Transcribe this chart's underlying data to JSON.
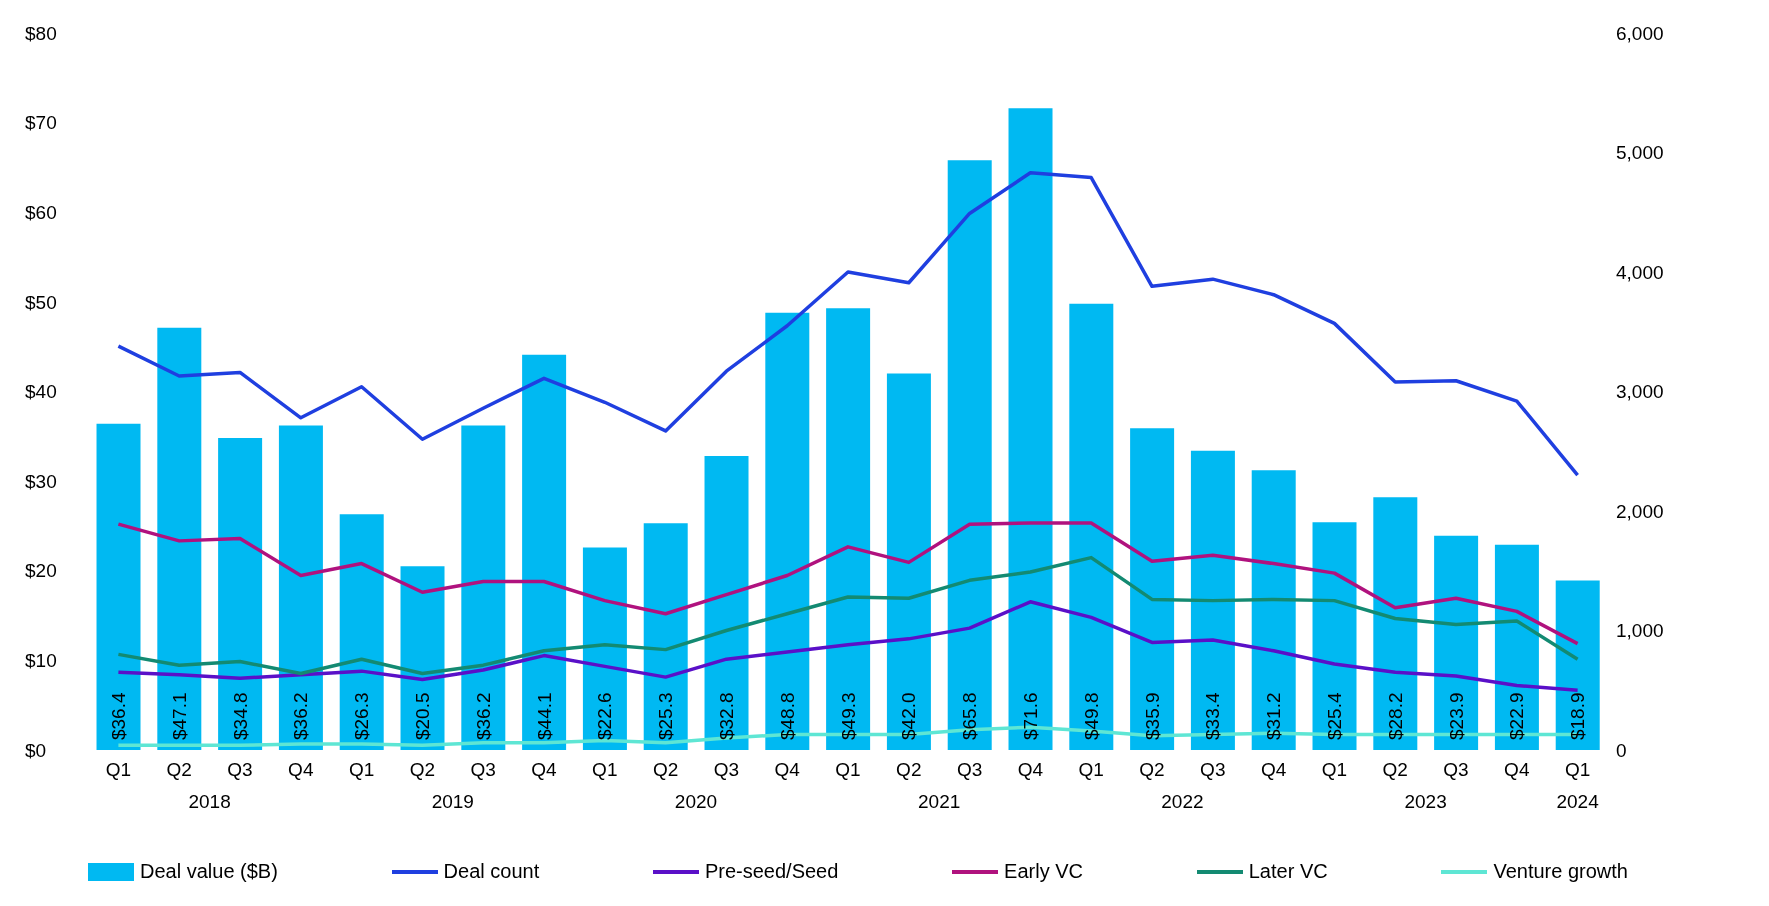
{
  "chart_data": {
    "type": "bar",
    "categories": [
      "Q1",
      "Q2",
      "Q3",
      "Q4",
      "Q1",
      "Q2",
      "Q3",
      "Q4",
      "Q1",
      "Q2",
      "Q3",
      "Q4",
      "Q1",
      "Q2",
      "Q3",
      "Q4",
      "Q1",
      "Q2",
      "Q3",
      "Q4",
      "Q1",
      "Q2",
      "Q3",
      "Q4",
      "Q1"
    ],
    "annotations": [
      "2018",
      "2019",
      "2020",
      "2021",
      "2022",
      "2023",
      "2024"
    ],
    "series": [
      {
        "name": "Deal value ($B)",
        "color": "#00b9f2",
        "values": [
          36.4,
          47.1,
          34.8,
          36.2,
          26.3,
          20.5,
          36.2,
          44.1,
          22.6,
          25.3,
          32.8,
          48.8,
          49.3,
          42.0,
          65.8,
          71.6,
          49.8,
          35.9,
          33.4,
          31.2,
          25.4,
          28.2,
          23.9,
          22.9,
          18.9
        ],
        "value_labels": [
          "$36.4",
          "$47.1",
          "$34.8",
          "$36.2",
          "$26.3",
          "$20.5",
          "$36.2",
          "$44.1",
          "$22.6",
          "$25.3",
          "$32.8",
          "$48.8",
          "$49.3",
          "$42.0",
          "$65.8",
          "$71.6",
          "$49.8",
          "$35.9",
          "$33.4",
          "$31.2",
          "$25.4",
          "$28.2",
          "$23.9",
          "$22.9",
          "$18.9"
        ]
      },
      {
        "name": "Deal count",
        "type": "line",
        "axis": "y2",
        "color": "#1f3fe0",
        "values": [
          3380,
          3130,
          3160,
          2780,
          3040,
          2600,
          2860,
          3110,
          2910,
          2670,
          3170,
          3550,
          4000,
          3910,
          4490,
          4830,
          4790,
          3880,
          3940,
          3810,
          3570,
          3080,
          3090,
          2920,
          2300
        ]
      },
      {
        "name": "Pre-seed/Seed",
        "type": "line",
        "axis": "y2",
        "color": "#5a10c8",
        "values": [
          650,
          630,
          600,
          630,
          660,
          590,
          670,
          790,
          700,
          610,
          760,
          820,
          880,
          930,
          1020,
          1240,
          1110,
          900,
          920,
          830,
          720,
          650,
          620,
          540,
          500
        ]
      },
      {
        "name": "Early VC",
        "type": "line",
        "axis": "y2",
        "color": "#b0127e",
        "values": [
          1890,
          1750,
          1770,
          1460,
          1560,
          1320,
          1410,
          1410,
          1250,
          1140,
          1300,
          1460,
          1700,
          1570,
          1890,
          1900,
          1900,
          1580,
          1630,
          1560,
          1480,
          1190,
          1270,
          1160,
          890
        ]
      },
      {
        "name": "Later VC",
        "type": "line",
        "axis": "y2",
        "color": "#138a72",
        "values": [
          800,
          710,
          740,
          640,
          760,
          640,
          710,
          830,
          880,
          840,
          1000,
          1140,
          1280,
          1270,
          1420,
          1490,
          1610,
          1260,
          1250,
          1260,
          1250,
          1100,
          1050,
          1080,
          760
        ]
      },
      {
        "name": "Venture growth",
        "type": "line",
        "axis": "y2",
        "color": "#5ee6d4",
        "values": [
          40,
          40,
          40,
          50,
          50,
          40,
          60,
          60,
          80,
          60,
          100,
          130,
          130,
          130,
          170,
          190,
          160,
          120,
          130,
          140,
          130,
          130,
          130,
          130,
          130
        ]
      }
    ],
    "ylim": [
      0,
      80
    ],
    "yticks": [
      {
        "value": 0,
        "label": "$0"
      },
      {
        "value": 10,
        "label": "$10"
      },
      {
        "value": 20,
        "label": "$20"
      },
      {
        "value": 30,
        "label": "$30"
      },
      {
        "value": 40,
        "label": "$40"
      },
      {
        "value": 50,
        "label": "$50"
      },
      {
        "value": 60,
        "label": "$60"
      },
      {
        "value": 70,
        "label": "$70"
      },
      {
        "value": 80,
        "label": "$80"
      }
    ],
    "y2lim": [
      0,
      6000
    ],
    "y2ticks": [
      0,
      {
        "value": 1000,
        "label": "1,000"
      },
      {
        "value": 2000,
        "label": "2,000"
      },
      {
        "value": 3000,
        "label": "3,000"
      },
      {
        "value": 4000,
        "label": "4,000"
      },
      {
        "value": 5000,
        "label": "5,000"
      },
      {
        "value": 6000,
        "label": "6,000"
      }
    ],
    "legend": "bottom",
    "grid": false,
    "marker": "none"
  }
}
